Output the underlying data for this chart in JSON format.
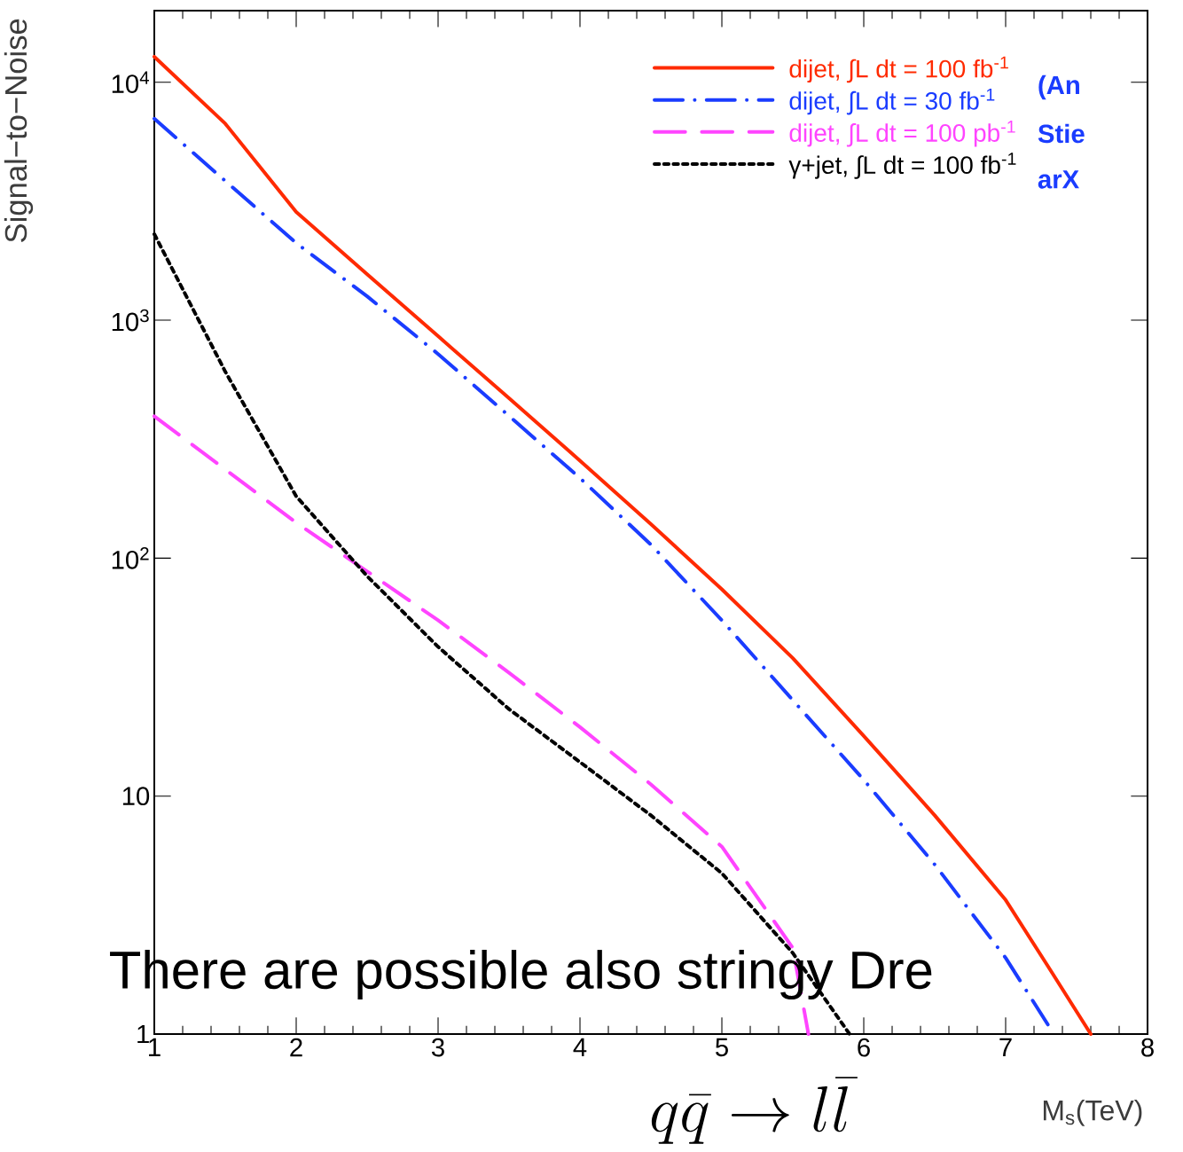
{
  "chart_data": {
    "type": "line",
    "xlabel": "M$_{s}$(TeV)",
    "ylabel": "Signal−to−Noise",
    "xlim": [
      1,
      8
    ],
    "ylim": [
      1,
      20000
    ],
    "log": "y",
    "legend": "top right",
    "xticks": [
      1,
      2,
      3,
      4,
      5,
      6,
      7,
      8
    ],
    "yticks": [
      1,
      10,
      {
        "value": 100,
        "label": "10$^{2}$"
      },
      {
        "value": 1000,
        "label": "10$^{3}$"
      },
      {
        "value": 10000,
        "label": "10$^{4}$"
      }
    ],
    "series": [
      {
        "name": "dijet, ∫L dt = 100 fb$^{-1}$",
        "color": "#ff2a00",
        "line_style": "solid",
        "x": [
          1,
          1.5,
          2,
          2.5,
          3,
          3.5,
          4,
          4.5,
          5,
          5.5,
          6,
          6.5,
          7,
          7.3,
          7.6
        ],
        "values": [
          12800,
          6700,
          2850,
          1560,
          857,
          470,
          257,
          139,
          74,
          38,
          17.9,
          8.3,
          3.66,
          1.92,
          1
        ]
      },
      {
        "name": "dijet,  ∫L dt = 30 fb$^{-1}$",
        "color": "#1a3cff",
        "line_style": "dashdotted",
        "x": [
          1,
          1.5,
          2,
          2.5,
          3,
          3.5,
          4,
          4.5,
          5,
          5.5,
          6,
          6.5,
          7,
          7.3
        ],
        "values": [
          7030,
          3850,
          2110,
          1260,
          721,
          396,
          217,
          114,
          54.8,
          25.3,
          11.7,
          5.16,
          2.09,
          1.09
        ]
      },
      {
        "name": "dijet, ∫L dt = 100 pb$^{-1}$",
        "color": "#ff44ff",
        "line_style": "dashed",
        "x": [
          1,
          1.5,
          2,
          2.5,
          3,
          3.5,
          4,
          4.5,
          5,
          5.5,
          5.61
        ],
        "values": [
          395,
          236,
          141,
          88,
          54.8,
          33,
          19.5,
          11.2,
          6.13,
          2.3,
          1
        ]
      },
      {
        "name": "γ+jet, ∫L dt = 100 fb$^{-1}$",
        "color": "#000000",
        "line_style": "dotted",
        "x": [
          1,
          1.5,
          2,
          2.5,
          3,
          3.5,
          4,
          4.5,
          5,
          5.5,
          5.9
        ],
        "values": [
          2300,
          608,
          182,
          84,
          42.4,
          23.2,
          13.9,
          8.3,
          4.74,
          2.19,
          1
        ]
      }
    ],
    "annotations": [
      "There are possible also stringy Dre",
      "(An",
      "Stie",
      "arX",
      "q\\bar{q} \\rightarrow l\\bar{l}"
    ]
  }
}
